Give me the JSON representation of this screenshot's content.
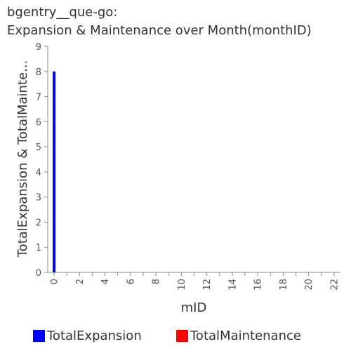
{
  "chart_data": {
    "type": "bar",
    "title": [
      "bgentry__que-go:",
      "Expansion & Maintenance over Month(monthID)"
    ],
    "xlabel": "mID",
    "ylabel": "TotalExpansion & TotalMainte...",
    "x_ticks": [
      "0",
      "2",
      "4",
      "6",
      "8",
      "10",
      "12",
      "14",
      "16",
      "18",
      "20",
      "22"
    ],
    "y_ticks": [
      "0",
      "1",
      "2",
      "3",
      "4",
      "5",
      "6",
      "7",
      "8",
      "9"
    ],
    "xlim": [
      -0.5,
      22.5
    ],
    "ylim": [
      0,
      9
    ],
    "grid": false,
    "legend_position": "bottom",
    "series": [
      {
        "name": "TotalExpansion",
        "color": "#0000ff",
        "points": [
          {
            "x": 0,
            "y": 8
          }
        ]
      },
      {
        "name": "TotalMaintenance",
        "color": "#ff0000",
        "points": [
          {
            "x": 0,
            "y": 0
          }
        ]
      }
    ]
  }
}
